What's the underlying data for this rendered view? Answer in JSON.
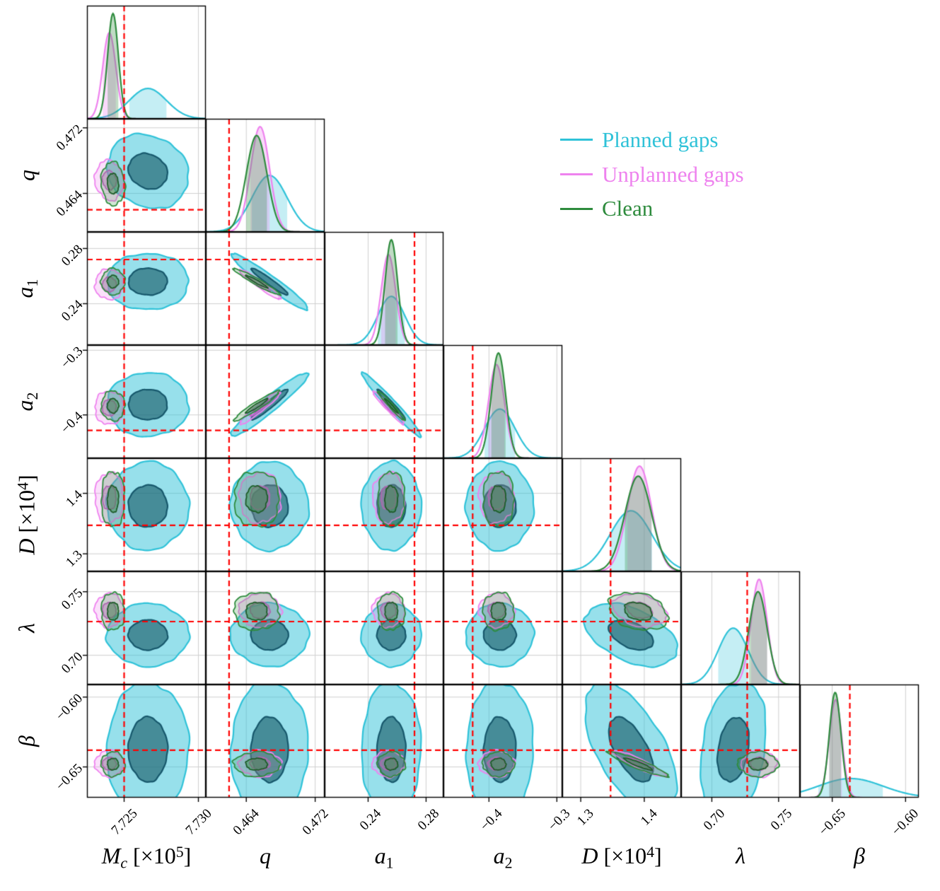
{
  "legend": {
    "items": [
      {
        "label": "Planned gaps",
        "color": "#2fc2d8"
      },
      {
        "label": "Unplanned gaps",
        "color": "#ee82ee"
      },
      {
        "label": "Clean",
        "color": "#2e8b3d"
      }
    ]
  },
  "chart_data": {
    "type": "corner-plot",
    "style": {
      "truth_color": "#ff0000",
      "grid_color": "#cfcfcf",
      "frame_color": "#000000",
      "background": "#ffffff"
    },
    "parameters": [
      {
        "key": "Mc",
        "label_parts": [
          [
            "M",
            "i"
          ],
          [
            "c",
            "isub"
          ],
          [
            " [×10",
            "r"
          ],
          [
            "5",
            "sup"
          ],
          [
            "]",
            "r"
          ]
        ],
        "lim": [
          7.7225,
          7.7305
        ],
        "ticks": [
          7.725,
          7.73
        ],
        "tick_labels": [
          "7.725",
          "7.730"
        ],
        "truth": 7.725
      },
      {
        "key": "q",
        "label_parts": [
          [
            "q",
            "i"
          ]
        ],
        "lim": [
          0.4593,
          0.4731
        ],
        "ticks": [
          0.464,
          0.472
        ],
        "tick_labels": [
          "0.464",
          "0.472"
        ],
        "truth": 0.462
      },
      {
        "key": "a1",
        "label_parts": [
          [
            "a",
            "i"
          ],
          [
            "1",
            "sub"
          ]
        ],
        "lim": [
          0.21,
          0.292
        ],
        "ticks": [
          0.24,
          0.28
        ],
        "tick_labels": [
          "0.24",
          "0.28"
        ],
        "truth": 0.272
      },
      {
        "key": "a2",
        "label_parts": [
          [
            "a",
            "i"
          ],
          [
            "2",
            "sub"
          ]
        ],
        "lim": [
          -0.467,
          -0.292
        ],
        "ticks": [
          -0.4,
          -0.3
        ],
        "tick_labels": [
          "−0.4",
          "−0.3"
        ],
        "truth": -0.424
      },
      {
        "key": "D",
        "label_parts": [
          [
            "D",
            "i"
          ],
          [
            " [×10",
            "r"
          ],
          [
            "4",
            "sup"
          ],
          [
            "]",
            "r"
          ]
        ],
        "lim": [
          1.271,
          1.458
        ],
        "ticks": [
          1.3,
          1.4
        ],
        "tick_labels": [
          "1.3",
          "1.4"
        ],
        "truth": 1.347
      },
      {
        "key": "lambda",
        "label_parts": [
          [
            "λ",
            "i"
          ]
        ],
        "lim": [
          0.677,
          0.766
        ],
        "ticks": [
          0.7,
          0.75
        ],
        "tick_labels": [
          "0.70",
          "0.75"
        ],
        "truth": 0.7265
      },
      {
        "key": "beta",
        "label_parts": [
          [
            "β",
            "i"
          ]
        ],
        "lim": [
          -0.672,
          -0.591
        ],
        "ticks": [
          -0.65,
          -0.6
        ],
        "tick_labels": [
          "−0.65",
          "−0.60"
        ],
        "truth": -0.638
      }
    ],
    "series": [
      {
        "name": "Planned gaps",
        "color": "#2fc2d8",
        "color_dark": "#16576b",
        "fill_outer": "rgba(47,194,216,0.50)",
        "fill_inner": "rgba(16,84,96,0.60)",
        "fill_diag": "rgba(47,194,216,0.28)",
        "wobble": 0.045,
        "means": [
          7.7266,
          0.4667,
          0.256,
          -0.384,
          1.379,
          0.716,
          -0.6375
        ],
        "sds": [
          0.00125,
          0.00205,
          0.0093,
          0.0225,
          0.033,
          0.0112,
          0.022
        ]
      },
      {
        "name": "Unplanned gaps",
        "color": "#ee82ee",
        "color_dark": "#cf5fcf",
        "fill_outer": "rgba(238,130,238,0.25)",
        "fill_inner": "rgba(221,110,221,0.42)",
        "fill_diag": "rgba(238,130,238,0.30)",
        "wobble": 0.1,
        "means": [
          7.724,
          0.4656,
          0.254,
          -0.389,
          1.3925,
          0.7354,
          -0.6477
        ],
        "sds": [
          0.00044,
          0.0011,
          0.005,
          0.0118,
          0.019,
          0.006,
          0.0043
        ]
      },
      {
        "name": "Clean",
        "color": "#2e8b3d",
        "color_dark": "#1d5c28",
        "fill_outer": "rgba(46,139,61,0.22)",
        "fill_inner": "rgba(46,139,61,0.45)",
        "fill_diag": "rgba(46,139,61,0.30)",
        "wobble": 0.1,
        "means": [
          7.72425,
          0.4652,
          0.256,
          -0.386,
          1.3905,
          0.7346,
          -0.648
        ],
        "sds": [
          0.00036,
          0.0012,
          0.0043,
          0.0105,
          0.021,
          0.0068,
          0.004
        ]
      }
    ],
    "correlations": {
      "default": {
        "q|a1": -0.962,
        "q|a2": 0.955,
        "a1|a2": -0.975,
        "Mc|q": -0.1,
        "D|lambda": -0.28,
        "D|beta": -0.92,
        "lambda|beta": 0.0
      },
      "overrides": {
        "Planned gaps": {
          "D|beta": -0.6,
          "D|lambda": -0.45,
          "lambda|beta": 0.25,
          "Mc|q": -0.15
        }
      }
    }
  }
}
